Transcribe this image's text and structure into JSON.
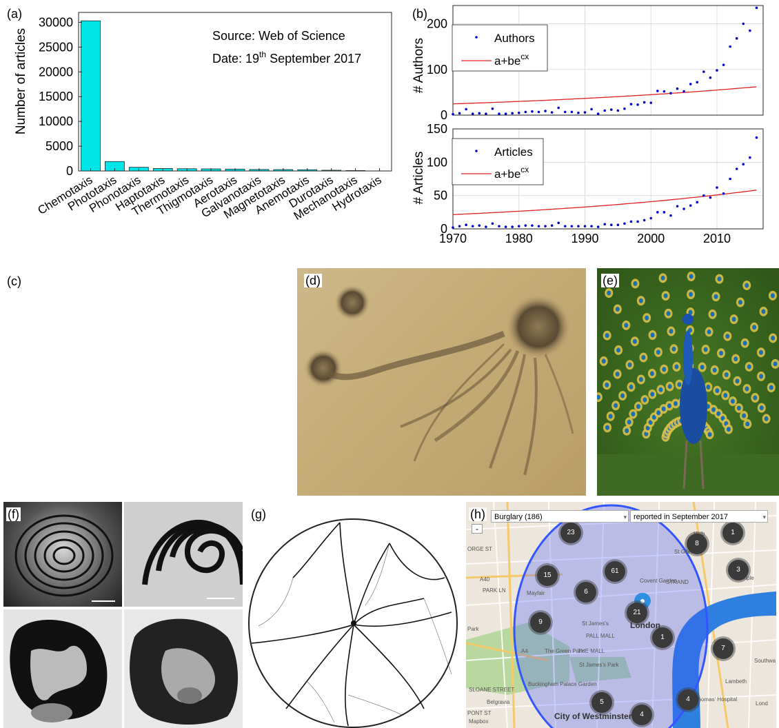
{
  "panel_labels": {
    "a": "(a)",
    "b": "(b)",
    "c": "(c)",
    "d": "(d)",
    "e": "(e)",
    "f": "(f)",
    "g": "(g)",
    "h": "(h)"
  },
  "panel_a": {
    "ylabel": "Number of articles",
    "source_line": "Source: Web of Science",
    "date_prefix": "Date: 19",
    "date_sup": "th",
    "date_suffix": " September 2017"
  },
  "panel_b": {
    "top_ylabel": "# Authors",
    "bottom_ylabel": "# Articles",
    "legend_top_points": "Authors",
    "legend_bottom_points": "Articles",
    "legend_fit_base": "a+be",
    "legend_fit_sup": "cx"
  },
  "colors": {
    "bar": "#00e5e8",
    "points": "#0000cc",
    "fit": "#e02020",
    "map_circle": "#3355ff"
  },
  "chart_data": [
    {
      "type": "bar",
      "categories": [
        "Chemotaxis",
        "Phototaxis",
        "Phonotaxis",
        "Haptotaxis",
        "Thermotaxis",
        "Thigmotaxis",
        "Aerotaxis",
        "Galvanotaxis",
        "Magnetotaxis",
        "Anemotaxis",
        "Durotaxis",
        "Mechanotaxis",
        "Hydrotaxis"
      ],
      "values": [
        30300,
        1900,
        750,
        500,
        450,
        420,
        380,
        300,
        280,
        250,
        150,
        80,
        20
      ],
      "ylabel": "Number of articles",
      "ylim": [
        0,
        32000
      ],
      "yticks": [
        0,
        5000,
        10000,
        15000,
        20000,
        25000,
        30000
      ]
    },
    {
      "type": "scatter",
      "ylabel": "# Authors",
      "xlim": [
        1970,
        2017
      ],
      "ylim": [
        0,
        240
      ],
      "yticks": [
        0,
        100,
        200
      ],
      "grid": true,
      "legend_position": "top-left",
      "series": [
        {
          "name": "Authors",
          "x": [
            1970,
            1971,
            1972,
            1973,
            1974,
            1975,
            1976,
            1977,
            1978,
            1979,
            1980,
            1981,
            1982,
            1983,
            1984,
            1985,
            1986,
            1987,
            1988,
            1989,
            1990,
            1991,
            1992,
            1993,
            1994,
            1995,
            1996,
            1997,
            1998,
            1999,
            2000,
            2001,
            2002,
            2003,
            2004,
            2005,
            2006,
            2007,
            2008,
            2009,
            2010,
            2011,
            2012,
            2013,
            2014,
            2015,
            2016
          ],
          "values": [
            2,
            4,
            13,
            3,
            4,
            3,
            14,
            3,
            3,
            4,
            5,
            7,
            8,
            7,
            9,
            6,
            16,
            7,
            7,
            5,
            6,
            13,
            3,
            10,
            12,
            10,
            14,
            24,
            23,
            28,
            27,
            53,
            52,
            48,
            58,
            52,
            68,
            72,
            95,
            82,
            98,
            110,
            150,
            168,
            200,
            185,
            235
          ]
        },
        {
          "name": "a+be^cx",
          "fit": {
            "a": 2,
            "b": 1.65e-17,
            "c": 0.0212
          }
        }
      ]
    },
    {
      "type": "scatter",
      "ylabel": "# Articles",
      "xlim": [
        1970,
        2017
      ],
      "ylim": [
        0,
        150
      ],
      "yticks": [
        0,
        50,
        100,
        150
      ],
      "xticks": [
        1970,
        1980,
        1990,
        2000,
        2010
      ],
      "grid": true,
      "legend_position": "top-left",
      "series": [
        {
          "name": "Articles",
          "x": [
            1970,
            1971,
            1972,
            1973,
            1974,
            1975,
            1976,
            1977,
            1978,
            1979,
            1980,
            1981,
            1982,
            1983,
            1984,
            1985,
            1986,
            1987,
            1988,
            1989,
            1990,
            1991,
            1992,
            1993,
            1994,
            1995,
            1996,
            1997,
            1998,
            1999,
            2000,
            2001,
            2002,
            2003,
            2004,
            2005,
            2006,
            2007,
            2008,
            2009,
            2010,
            2011,
            2012,
            2013,
            2014,
            2015,
            2016
          ],
          "values": [
            2,
            4,
            6,
            4,
            5,
            3,
            8,
            4,
            3,
            3,
            4,
            5,
            5,
            4,
            4,
            5,
            9,
            4,
            4,
            4,
            4,
            4,
            3,
            7,
            6,
            6,
            8,
            11,
            11,
            13,
            16,
            25,
            25,
            20,
            34,
            30,
            35,
            40,
            50,
            47,
            62,
            53,
            75,
            90,
            97,
            107,
            137
          ]
        },
        {
          "name": "a+be^cx",
          "fit": {
            "a": 2,
            "b": 3.35e-19,
            "c": 0.0231
          }
        }
      ]
    }
  ],
  "map": {
    "crime_select": "Burglary (186)",
    "date_select": "reported in September 2017",
    "zoom_minus": "-",
    "clusters": [
      "23",
      "1",
      "8",
      "15",
      "61",
      "3",
      "6",
      "21",
      "9",
      "1",
      "7",
      "5",
      "4",
      "4"
    ],
    "labels": {
      "london": "London",
      "city_westminster": "City of Westminster",
      "covent_garden": "Covent Garden",
      "mayfair": "Mayfair",
      "st_giles": "St Giles",
      "st_james": "St James's",
      "pall_mall": "PALL MALL",
      "the_mall": "THE MALL",
      "green_park": "The Green Park",
      "st_james_park": "St James's Park",
      "lambeth": "Lambeth",
      "belgravia": "Belgravia",
      "southwark": "Southwa",
      "buckingham": "Buckingham Palace Garden",
      "strand": "STRAND",
      "holborn": "Holb",
      "temple": "Temple",
      "a40": "A40",
      "a4": "A4",
      "mapbox": "Mapbox",
      "park": "Park",
      "george_st": "ORGE ST",
      "park_ln": "PARK LN",
      "sloane": "SLOANE STREET",
      "pont_st": "PONT ST",
      "st_thomas": "St Thomas' Hospital",
      "lond": "Lond"
    }
  }
}
